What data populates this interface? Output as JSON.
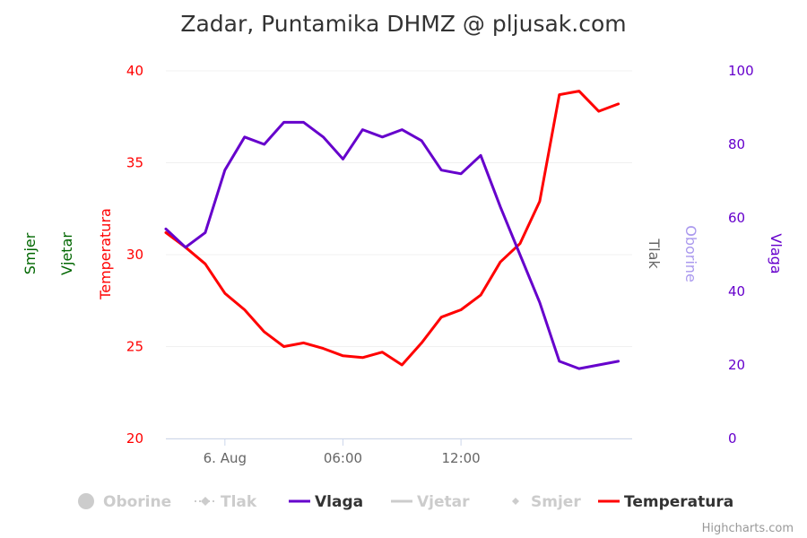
{
  "colors": {
    "temperatura": "#ff0000",
    "vlaga": "#6600cc",
    "oborine": "#aa99ee",
    "tlak": "#666666",
    "vjetar": "#006600",
    "smjer": "#006600",
    "legend_hidden": "#cccccc",
    "grid": "#f0f0f0"
  },
  "chart_data": {
    "type": "line",
    "title": "Zadar, Puntamika DHMZ @ pljusak.com",
    "x_ticks": [
      "6. Aug",
      "06:00",
      "12:00"
    ],
    "x_tick_positions": [
      3,
      9,
      15
    ],
    "x_range": [
      0,
      23.7
    ],
    "left_axis": {
      "label": "Temperatura",
      "range": [
        20,
        40
      ],
      "ticks": [
        "20",
        "25",
        "30",
        "35",
        "40"
      ]
    },
    "right_axis": {
      "label": "Vlaga",
      "range": [
        0,
        100
      ],
      "ticks": [
        "0",
        "20",
        "40",
        "60",
        "80",
        "100"
      ]
    },
    "extra_left_axis_titles": [
      "Vjetar",
      "Smjer"
    ],
    "extra_right_axis_titles": [
      "Tlak",
      "Oborine"
    ],
    "grid": true,
    "series": [
      {
        "name": "Temperatura",
        "axis": "left",
        "x": [
          0,
          1,
          2,
          3,
          4,
          5,
          6,
          7,
          8,
          9,
          10,
          11,
          12,
          13,
          14,
          15,
          16,
          17,
          18,
          19,
          20,
          21,
          22,
          23
        ],
        "values": [
          31.2,
          30.4,
          29.5,
          27.9,
          27.0,
          25.8,
          25.0,
          25.2,
          24.9,
          24.5,
          24.4,
          24.7,
          24.0,
          25.2,
          26.6,
          27.0,
          27.8,
          29.6,
          30.6,
          32.9,
          38.7,
          38.9,
          37.8,
          38.2
        ]
      },
      {
        "name": "Vlaga",
        "axis": "right",
        "x": [
          0,
          1,
          2,
          3,
          4,
          5,
          6,
          7,
          8,
          9,
          10,
          11,
          12,
          13,
          14,
          15,
          16,
          17,
          18,
          19,
          20,
          21,
          22,
          23
        ],
        "values": [
          57,
          52,
          56,
          73,
          82,
          80,
          86,
          86,
          82,
          76,
          84,
          82,
          84,
          81,
          73,
          72,
          77,
          63,
          50,
          37,
          21,
          19,
          20,
          21
        ]
      }
    ],
    "legend": {
      "placement": "bottom",
      "items": [
        {
          "name": "Oborine",
          "visible": false,
          "symbol": "circle"
        },
        {
          "name": "Tlak",
          "visible": false,
          "symbol": "dashed-diamond"
        },
        {
          "name": "Vlaga",
          "visible": true,
          "symbol": "line"
        },
        {
          "name": "Vjetar",
          "visible": false,
          "symbol": "line"
        },
        {
          "name": "Smjer",
          "visible": false,
          "symbol": "diamond"
        },
        {
          "name": "Temperatura",
          "visible": true,
          "symbol": "line"
        }
      ]
    }
  },
  "credits": "Highcharts.com"
}
